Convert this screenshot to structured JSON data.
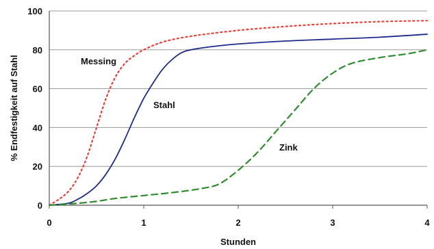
{
  "chart_data": {
    "type": "line",
    "title": "",
    "xlabel": "Stunden",
    "ylabel": "% Endfestigkeit auf Stahl",
    "xlim": [
      0,
      4
    ],
    "ylim": [
      0,
      100
    ],
    "x_ticks": [
      "0",
      "1",
      "2",
      "3",
      "4"
    ],
    "y_ticks": [
      "0",
      "20",
      "40",
      "60",
      "80",
      "100"
    ],
    "grid": "horizontal",
    "legend": "none",
    "series": [
      {
        "name": "Messing",
        "color": "#e8413a",
        "dash": "dotted",
        "x": [
          0,
          0.1,
          0.2,
          0.3,
          0.4,
          0.5,
          0.6,
          0.7,
          0.8,
          0.9,
          1.0,
          1.2,
          1.5,
          2.0,
          2.5,
          3.0,
          3.5,
          4.0
        ],
        "y": [
          0,
          3,
          7,
          14,
          25,
          40,
          55,
          66,
          73,
          77,
          80,
          84,
          87,
          90,
          92,
          93.5,
          94.5,
          95
        ]
      },
      {
        "name": "Stahl",
        "color": "#1f2a8a",
        "dash": "solid",
        "x": [
          0,
          0.2,
          0.3,
          0.4,
          0.5,
          0.6,
          0.7,
          0.8,
          0.9,
          1.0,
          1.1,
          1.2,
          1.3,
          1.4,
          1.5,
          1.7,
          2.0,
          2.5,
          3.0,
          3.5,
          4.0
        ],
        "y": [
          0,
          1,
          3,
          6,
          10,
          16,
          24,
          34,
          45,
          55,
          63,
          70,
          75,
          78.5,
          80,
          81.5,
          83,
          84.5,
          85.5,
          86.5,
          88
        ]
      },
      {
        "name": "Zink",
        "color": "#2e8b2e",
        "dash": "dashed",
        "x": [
          0,
          0.3,
          0.5,
          0.7,
          1.0,
          1.3,
          1.6,
          1.8,
          2.0,
          2.2,
          2.4,
          2.6,
          2.8,
          3.0,
          3.2,
          3.5,
          3.8,
          4.0
        ],
        "y": [
          0,
          1,
          2,
          3.5,
          5,
          6.5,
          8.5,
          11,
          18,
          27,
          38,
          49,
          60,
          68,
          73,
          76,
          78,
          80
        ]
      }
    ]
  }
}
